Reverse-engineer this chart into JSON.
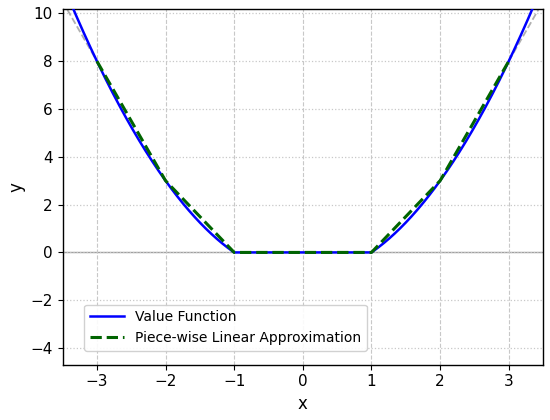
{
  "title": "",
  "xlabel": "x",
  "ylabel": "y",
  "xlim": [
    -3.5,
    3.5
  ],
  "ylim": [
    -4.7,
    10.2
  ],
  "value_function_color": "#0000ff",
  "pwl_color": "#006400",
  "tangent_color": "#b0b0b0",
  "background_color": "#ffffff",
  "grid_major_color": "#c8c8c8",
  "grid_minor_color": "#e0e0e0",
  "zero_line_color": "#a0a0a0",
  "pwl_breakpoints_x": [
    -3.0,
    -2.0,
    -1.0,
    0.0,
    1.0,
    2.0,
    3.0
  ],
  "pwl_linewidth": 2.2,
  "vf_linewidth": 1.8,
  "tangent_linewidth": 1.3,
  "legend_fontsize": 10,
  "axis_fontsize": 12,
  "tick_fontsize": 11,
  "yticks": [
    -4,
    -2,
    0,
    2,
    4,
    6,
    8,
    10
  ],
  "xticks": [
    -3,
    -2,
    -1,
    0,
    1,
    2,
    3
  ]
}
